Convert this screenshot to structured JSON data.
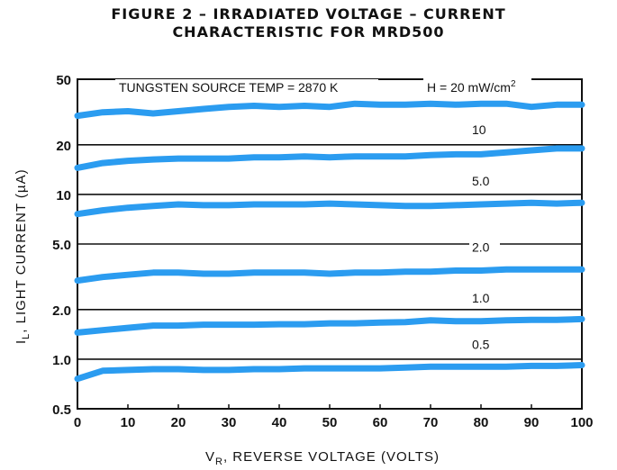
{
  "chart_data": {
    "type": "line",
    "title_line1": "FIGURE 2 – IRRADIATED VOLTAGE – CURRENT",
    "title_line2": "CHARACTERISTIC FOR MRD500",
    "xlabel_main": "V",
    "xlabel_sub": "R",
    "xlabel_rest": ", REVERSE VOLTAGE (VOLTS)",
    "ylabel_main": "I",
    "ylabel_sub": "L",
    "ylabel_rest": ", LIGHT CURRENT (µA)",
    "yscale": "log",
    "xlim": [
      0,
      100
    ],
    "ylim": [
      0.5,
      50
    ],
    "x_ticks": [
      "0",
      "10",
      "20",
      "30",
      "40",
      "50",
      "60",
      "70",
      "80",
      "90",
      "100"
    ],
    "x_tick_values": [
      0,
      10,
      20,
      30,
      40,
      50,
      60,
      70,
      80,
      90,
      100
    ],
    "y_ticks": [
      "0.5",
      "1.0",
      "2.0",
      "5.0",
      "10",
      "20",
      "50"
    ],
    "y_tick_values": [
      0.5,
      1.0,
      2.0,
      5.0,
      10,
      20,
      50
    ],
    "grid": true,
    "line_color": "#2b9cf0",
    "annotation_source": "TUNGSTEN SOURCE TEMP = 2870 K",
    "annotation_h": "H = 20 mW/cm",
    "annotation_h_sup": "2",
    "series": [
      {
        "name": "20",
        "x": [
          0,
          5,
          10,
          15,
          20,
          25,
          30,
          35,
          40,
          45,
          50,
          55,
          60,
          65,
          70,
          75,
          80,
          85,
          90,
          95,
          100
        ],
        "values": [
          30,
          31.5,
          32,
          31,
          32,
          33,
          34,
          34.5,
          34,
          34.5,
          34,
          35.5,
          35,
          35,
          35.5,
          35,
          35.5,
          35.5,
          34,
          35,
          35
        ]
      },
      {
        "name": "10",
        "x": [
          0,
          5,
          10,
          15,
          20,
          25,
          30,
          35,
          40,
          45,
          50,
          55,
          60,
          65,
          70,
          75,
          80,
          85,
          90,
          95,
          100
        ],
        "values": [
          14.5,
          15.5,
          16,
          16.3,
          16.5,
          16.5,
          16.5,
          16.8,
          16.8,
          17,
          16.8,
          17,
          17,
          17,
          17.3,
          17.5,
          17.5,
          18,
          18.5,
          19,
          19
        ]
      },
      {
        "name": "5.0",
        "x": [
          0,
          5,
          10,
          15,
          20,
          25,
          30,
          35,
          40,
          45,
          50,
          55,
          60,
          65,
          70,
          75,
          80,
          85,
          90,
          95,
          100
        ],
        "values": [
          7.6,
          8.0,
          8.3,
          8.5,
          8.7,
          8.6,
          8.6,
          8.7,
          8.7,
          8.7,
          8.8,
          8.7,
          8.6,
          8.5,
          8.5,
          8.6,
          8.7,
          8.8,
          8.9,
          8.8,
          8.9
        ]
      },
      {
        "name": "2.0",
        "x": [
          0,
          5,
          10,
          15,
          20,
          25,
          30,
          35,
          40,
          45,
          50,
          55,
          60,
          65,
          70,
          75,
          80,
          85,
          90,
          95,
          100
        ],
        "values": [
          3.0,
          3.15,
          3.25,
          3.35,
          3.35,
          3.3,
          3.3,
          3.35,
          3.35,
          3.35,
          3.3,
          3.35,
          3.35,
          3.4,
          3.4,
          3.45,
          3.45,
          3.5,
          3.5,
          3.5,
          3.5
        ]
      },
      {
        "name": "1.0",
        "x": [
          0,
          5,
          10,
          15,
          20,
          25,
          30,
          35,
          40,
          45,
          50,
          55,
          60,
          65,
          70,
          75,
          80,
          85,
          90,
          95,
          100
        ],
        "values": [
          1.45,
          1.5,
          1.55,
          1.6,
          1.6,
          1.62,
          1.62,
          1.62,
          1.63,
          1.63,
          1.65,
          1.65,
          1.67,
          1.68,
          1.72,
          1.7,
          1.7,
          1.72,
          1.73,
          1.73,
          1.75
        ]
      },
      {
        "name": "0.5",
        "x": [
          0,
          5,
          10,
          15,
          20,
          25,
          30,
          35,
          40,
          45,
          50,
          55,
          60,
          65,
          70,
          75,
          80,
          85,
          90,
          95,
          100
        ],
        "values": [
          0.76,
          0.85,
          0.86,
          0.87,
          0.87,
          0.86,
          0.86,
          0.87,
          0.87,
          0.88,
          0.88,
          0.88,
          0.88,
          0.89,
          0.9,
          0.9,
          0.9,
          0.9,
          0.91,
          0.91,
          0.92
        ]
      }
    ]
  }
}
